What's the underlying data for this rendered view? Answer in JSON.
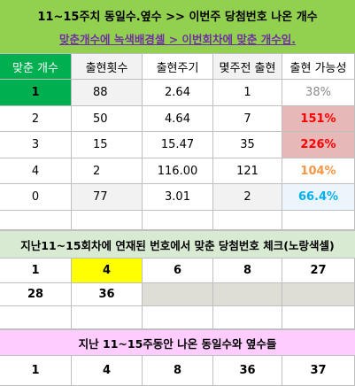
{
  "title": {
    "main": "11~15주치 동일수.옆수 >> 이번주 당첨번호 나온 개수",
    "sub": "맞춘개수에 녹색배경셀 > 이번회차에 맞춘 개수임."
  },
  "table": {
    "headers": [
      "맞춘 개수",
      "출현횟수",
      "출현주기",
      "몇주전 출현",
      "출현 가능성"
    ],
    "rows": [
      {
        "count": "1",
        "freq": "88",
        "cycle": "2.64",
        "weeks": "1",
        "prob": "38%"
      },
      {
        "count": "2",
        "freq": "50",
        "cycle": "4.64",
        "weeks": "7",
        "prob": "151%"
      },
      {
        "count": "3",
        "freq": "15",
        "cycle": "15.47",
        "weeks": "35",
        "prob": "226%"
      },
      {
        "count": "4",
        "freq": "2",
        "cycle": "116.00",
        "weeks": "121",
        "prob": "104%"
      },
      {
        "count": "0",
        "freq": "77",
        "cycle": "3.01",
        "weeks": "2",
        "prob": "66.4%"
      }
    ]
  },
  "section2": {
    "title": "지난11~15회차에 연재된 번호에서 맞춘 당첨번호 체크(노랑색셀)",
    "numbers_row1": [
      "1",
      "4",
      "6",
      "8",
      "27"
    ],
    "numbers_row2": [
      "28",
      "36"
    ]
  },
  "section3": {
    "title": "지난 11~15주동안 나온 동일수와 옆수들",
    "numbers": [
      "1",
      "4",
      "8",
      "36",
      "37"
    ]
  },
  "colors": {
    "title_bg": "#92d050",
    "header_green": "#00b050",
    "highlight_yellow": "#ffff00",
    "pink_cell": "#e6b8b7",
    "section2_bg": "#d9ead3",
    "section3_bg": "#ffccff"
  }
}
